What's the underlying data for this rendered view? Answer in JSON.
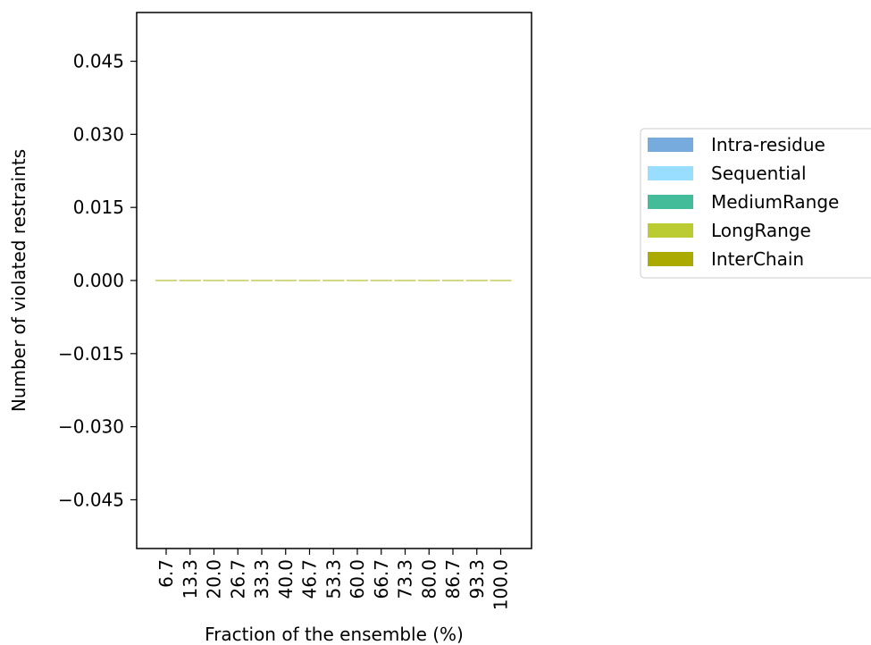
{
  "chart_data": {
    "type": "bar",
    "stacked": true,
    "title": "",
    "xlabel": "Fraction of the ensemble (%)",
    "ylabel": "Number of violated restraints",
    "categories": [
      "6.7",
      "13.3",
      "20.0",
      "26.7",
      "33.3",
      "40.0",
      "46.7",
      "53.3",
      "60.0",
      "66.7",
      "73.3",
      "80.0",
      "86.7",
      "93.3",
      "100.0"
    ],
    "ylim": [
      -0.055,
      0.055
    ],
    "yticks": [
      -0.045,
      -0.03,
      -0.015,
      0.0,
      0.015,
      0.03,
      0.045
    ],
    "ytick_labels": [
      "−0.045",
      "−0.030",
      "−0.015",
      "0.000",
      "0.015",
      "0.030",
      "0.045"
    ],
    "grid": false,
    "legend_position": "right",
    "series": [
      {
        "name": "Intra-residue",
        "color": "#77aadd",
        "values": [
          0,
          0,
          0,
          0,
          0,
          0,
          0,
          0,
          0,
          0,
          0,
          0,
          0,
          0,
          0
        ]
      },
      {
        "name": "Sequential",
        "color": "#99ddff",
        "values": [
          0,
          0,
          0,
          0,
          0,
          0,
          0,
          0,
          0,
          0,
          0,
          0,
          0,
          0,
          0
        ]
      },
      {
        "name": "MediumRange",
        "color": "#44bb99",
        "values": [
          0,
          0,
          0,
          0,
          0,
          0,
          0,
          0,
          0,
          0,
          0,
          0,
          0,
          0,
          0
        ]
      },
      {
        "name": "LongRange",
        "color": "#bbcc33",
        "values": [
          0,
          0,
          0,
          0,
          0,
          0,
          0,
          0,
          0,
          0,
          0,
          0,
          0,
          0,
          0
        ]
      },
      {
        "name": "InterChain",
        "color": "#aaaa00",
        "values": [
          0,
          0,
          0,
          0,
          0,
          0,
          0,
          0,
          0,
          0,
          0,
          0,
          0,
          0,
          0
        ]
      }
    ]
  }
}
